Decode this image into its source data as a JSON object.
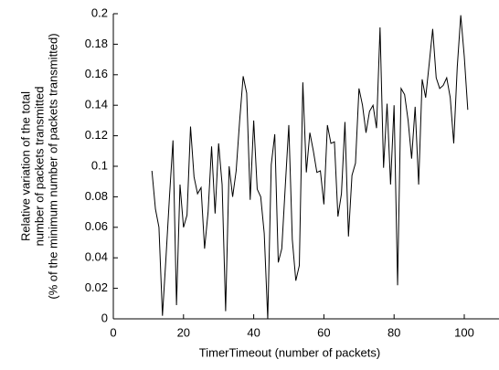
{
  "chart_data": {
    "type": "line",
    "xlabel": "TimerTimeout (number of packets)",
    "ylabel": [
      "Relative variation of the total",
      "number of packets transmitted",
      "(% of the minimum number of packets transmitted)"
    ],
    "x": [
      11,
      12,
      13,
      14,
      15,
      16,
      17,
      18,
      19,
      20,
      21,
      22,
      23,
      24,
      25,
      26,
      27,
      28,
      29,
      30,
      31,
      32,
      33,
      34,
      35,
      36,
      37,
      38,
      39,
      40,
      41,
      42,
      43,
      44,
      45,
      46,
      47,
      48,
      49,
      50,
      51,
      52,
      53,
      54,
      55,
      56,
      57,
      58,
      59,
      60,
      61,
      62,
      63,
      64,
      65,
      66,
      67,
      68,
      69,
      70,
      71,
      72,
      73,
      74,
      75,
      76,
      77,
      78,
      79,
      80,
      81,
      82,
      83,
      84,
      85,
      86,
      87,
      88,
      89,
      90,
      91,
      92,
      93,
      94,
      95,
      96,
      97,
      98,
      99,
      100,
      101
    ],
    "series": [
      {
        "color": "#000000",
        "values": [
          0.097,
          0.072,
          0.06,
          0.002,
          0.04,
          0.08,
          0.117,
          0.009,
          0.088,
          0.06,
          0.068,
          0.126,
          0.093,
          0.082,
          0.086,
          0.046,
          0.07,
          0.113,
          0.069,
          0.115,
          0.088,
          0.005,
          0.1,
          0.08,
          0.097,
          0.13,
          0.159,
          0.148,
          0.078,
          0.13,
          0.085,
          0.08,
          0.056,
          0.0,
          0.101,
          0.121,
          0.037,
          0.046,
          0.087,
          0.127,
          0.052,
          0.025,
          0.035,
          0.155,
          0.096,
          0.122,
          0.11,
          0.096,
          0.097,
          0.075,
          0.127,
          0.115,
          0.116,
          0.067,
          0.082,
          0.129,
          0.054,
          0.094,
          0.102,
          0.151,
          0.14,
          0.122,
          0.136,
          0.14,
          0.125,
          0.191,
          0.099,
          0.141,
          0.088,
          0.14,
          0.022,
          0.151,
          0.147,
          0.13,
          0.105,
          0.139,
          0.088,
          0.157,
          0.145,
          0.167,
          0.19,
          0.158,
          0.151,
          0.153,
          0.158,
          0.145,
          0.115,
          0.165,
          0.199,
          0.172,
          0.137
        ]
      }
    ],
    "xlim": [
      0,
      110
    ],
    "xticks": [
      0,
      20,
      40,
      60,
      80,
      100
    ],
    "ylim": [
      0,
      0.2
    ],
    "yticks": [
      0,
      0.02,
      0.04,
      0.06,
      0.08,
      0.1,
      0.12,
      0.14,
      0.16,
      0.18,
      0.2
    ]
  }
}
